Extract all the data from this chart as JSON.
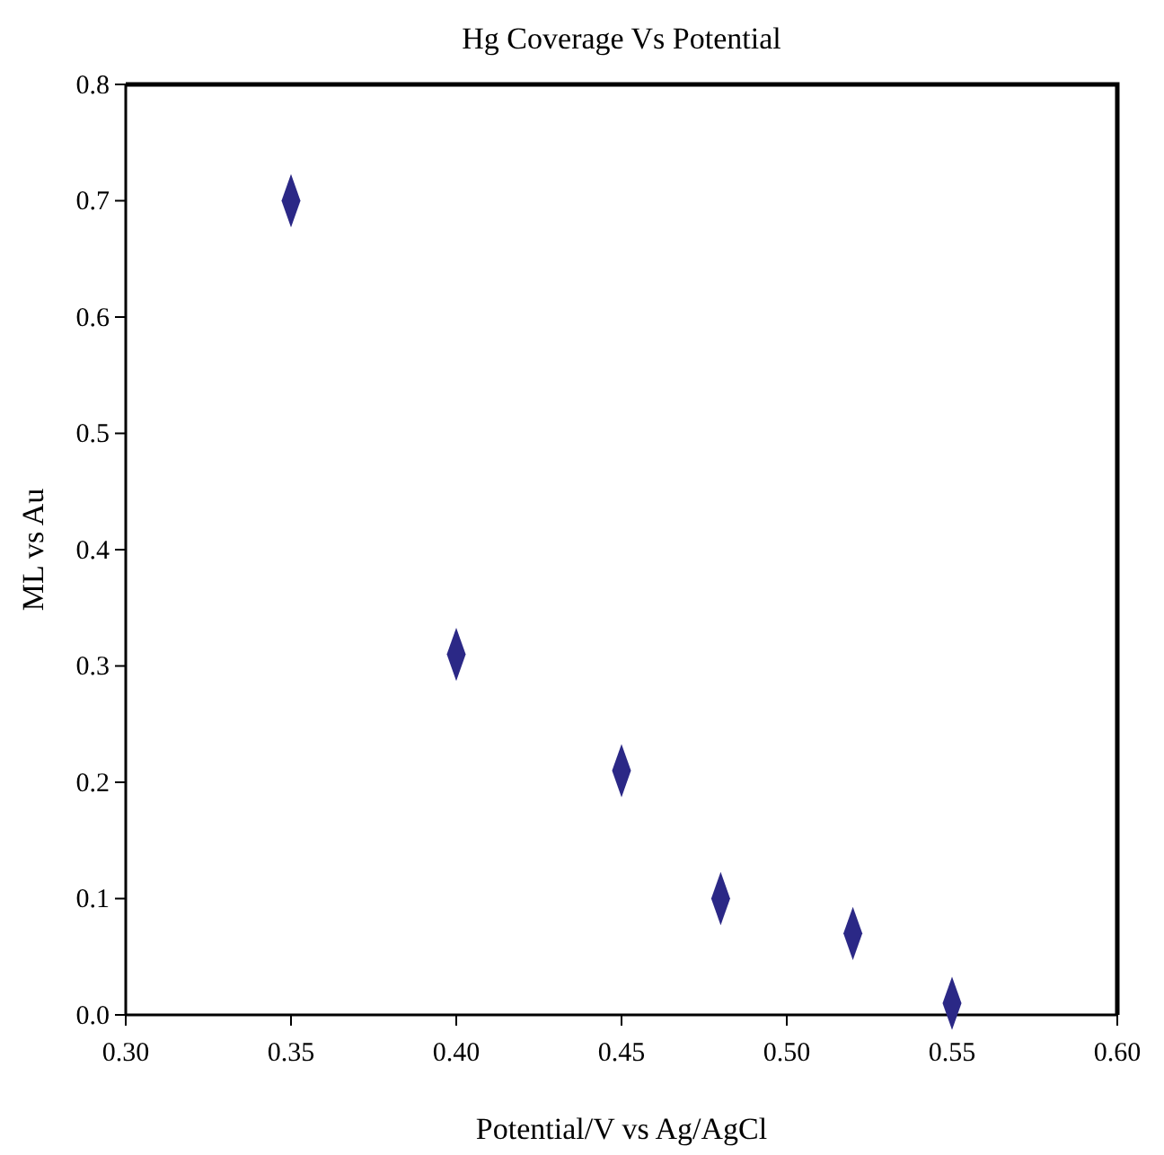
{
  "chart_data": {
    "type": "scatter",
    "title": "Hg Coverage Vs Potential",
    "xlabel": "Potential/V vs Ag/AgCl",
    "ylabel": "ML vs Au",
    "x": [
      0.35,
      0.4,
      0.45,
      0.48,
      0.52,
      0.55
    ],
    "series": [
      {
        "color": "#2b2886",
        "values": [
          0.7,
          0.31,
          0.21,
          0.1,
          0.07,
          0.01
        ]
      }
    ],
    "xlim": [
      0.3,
      0.6
    ],
    "ylim": [
      0,
      0.8
    ],
    "xticks": [
      {
        "value": 0.3,
        "label": "0.30"
      },
      {
        "value": 0.35,
        "label": "0.35"
      },
      {
        "value": 0.4,
        "label": "0.40"
      },
      {
        "value": 0.45,
        "label": "0.45"
      },
      {
        "value": 0.5,
        "label": "0.50"
      },
      {
        "value": 0.55,
        "label": "0.55"
      },
      {
        "value": 0.6,
        "label": "0.60"
      }
    ],
    "yticks": [
      {
        "value": 0,
        "label": "0.0"
      },
      {
        "value": 0.1,
        "label": "0.1"
      },
      {
        "value": 0.2,
        "label": "0.2"
      },
      {
        "value": 0.3,
        "label": "0.3"
      },
      {
        "value": 0.4,
        "label": "0.4"
      },
      {
        "value": 0.5,
        "label": "0.5"
      },
      {
        "value": 0.6,
        "label": "0.6"
      },
      {
        "value": 0.7,
        "label": "0.7"
      },
      {
        "value": 0.8,
        "label": "0.8"
      }
    ],
    "marker": "diamond",
    "grid": false
  }
}
